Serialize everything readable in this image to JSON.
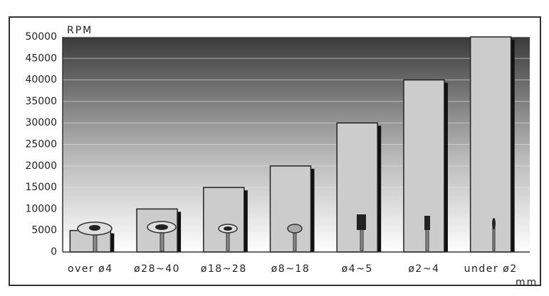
{
  "chart_data": {
    "type": "bar",
    "y_label": "RPM",
    "x_unit": "mm",
    "categories": [
      "over ø4",
      "ø28~40",
      "ø18~28",
      "ø8~18",
      "ø4~5",
      "ø2~4",
      "under ø2"
    ],
    "values": [
      5000,
      10000,
      15000,
      20000,
      30000,
      40000,
      50000
    ],
    "color": "#cccccc",
    "ylim": [
      0,
      50000
    ],
    "yticks": [
      0,
      5000,
      10000,
      15000,
      20000,
      25000,
      30000,
      35000,
      40000,
      45000,
      50000
    ],
    "grid": true
  }
}
